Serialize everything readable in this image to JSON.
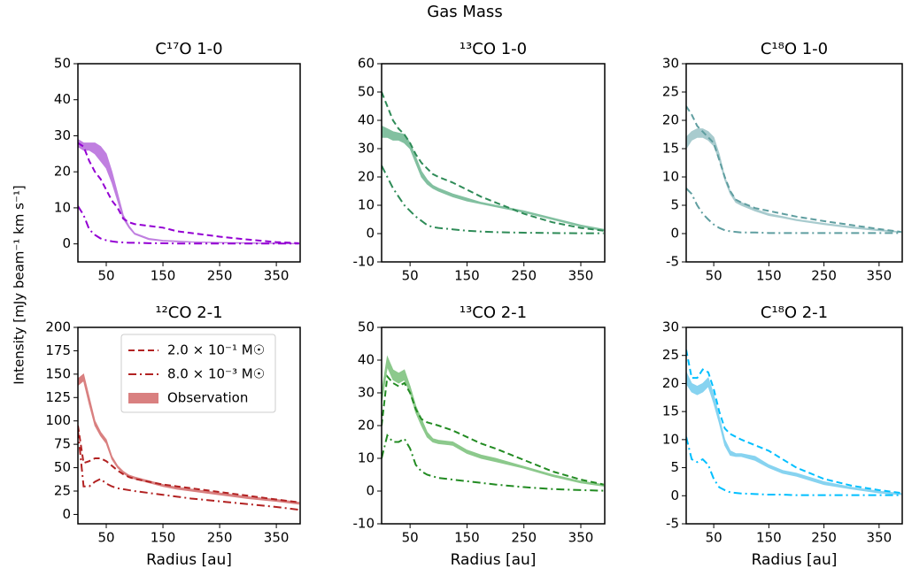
{
  "title": "Gas Mass",
  "y_label": "Intensity [mJy beam⁻¹ km s⁻¹]",
  "chart_data": [
    {
      "type": "line",
      "title": "C¹⁷O 1-0",
      "xlim": [
        0,
        392
      ],
      "ylim": [
        -5,
        50
      ],
      "xticks": [
        50,
        150,
        250,
        350
      ],
      "yticks": [
        0,
        10,
        20,
        30,
        40,
        50
      ],
      "x": [
        0,
        10,
        20,
        30,
        40,
        50,
        60,
        70,
        80,
        90,
        100,
        125,
        150,
        175,
        200,
        250,
        300,
        350,
        390
      ],
      "series": [
        {
          "color": "#9400d3",
          "style": "dashed",
          "values": [
            28,
            27,
            23,
            20,
            18,
            15,
            12,
            10,
            7,
            6,
            5.5,
            5,
            4.5,
            3.5,
            3,
            2,
            1.2,
            0.5,
            0.2
          ]
        },
        {
          "color": "#9400d3",
          "style": "dashdot",
          "values": [
            10.5,
            8,
            4,
            2.5,
            1.5,
            1,
            0.7,
            0.5,
            0.4,
            0.3,
            0.3,
            0.2,
            0.2,
            0.1,
            0.1,
            0.1,
            0.1,
            0.1,
            0.1
          ]
        },
        {
          "color": "#c07fe0",
          "style": "band",
          "lower": [
            27,
            26,
            26,
            25,
            23,
            21,
            17,
            12,
            7,
            4.5,
            2.7,
            1.2,
            0.8,
            0.6,
            0.5,
            0.3,
            0.2,
            0.1,
            0
          ],
          "upper": [
            29,
            28,
            28,
            28,
            27,
            25,
            20,
            14,
            8,
            5,
            3,
            1.5,
            1,
            0.8,
            0.6,
            0.4,
            0.3,
            0.2,
            0.1
          ]
        }
      ]
    },
    {
      "type": "line",
      "title": "¹³CO 1-0",
      "xlim": [
        0,
        392
      ],
      "ylim": [
        -10,
        60
      ],
      "xticks": [
        50,
        150,
        250,
        350
      ],
      "yticks": [
        -10,
        0,
        10,
        20,
        30,
        40,
        50,
        60
      ],
      "x": [
        0,
        10,
        20,
        30,
        40,
        50,
        60,
        70,
        80,
        90,
        100,
        125,
        150,
        175,
        200,
        250,
        300,
        350,
        390
      ],
      "series": [
        {
          "color": "#2e8b57",
          "style": "dashed",
          "values": [
            50,
            45,
            40,
            37,
            35,
            32,
            28,
            25,
            23,
            21,
            20,
            18,
            15.5,
            13,
            11,
            7,
            4,
            2,
            1
          ]
        },
        {
          "color": "#2e8b57",
          "style": "dashdot",
          "values": [
            24,
            20,
            16,
            13,
            10,
            8,
            6,
            4.5,
            3,
            2.3,
            2,
            1.5,
            1,
            0.7,
            0.5,
            0.3,
            0.2,
            0.1,
            0.1
          ]
        },
        {
          "color": "#82c0a0",
          "style": "band",
          "lower": [
            34,
            34,
            33,
            33,
            32,
            30,
            25,
            20,
            17.5,
            16,
            15,
            13,
            11.5,
            10.5,
            9.5,
            7.5,
            5,
            2.5,
            1
          ],
          "upper": [
            38,
            37,
            36,
            35.5,
            35,
            32,
            27,
            22,
            19,
            17,
            16,
            14,
            12.5,
            11,
            10,
            8,
            5.5,
            3,
            1.5
          ]
        }
      ]
    },
    {
      "type": "line",
      "title": "C¹⁸O 1-0",
      "xlim": [
        0,
        392
      ],
      "ylim": [
        -5,
        30
      ],
      "xticks": [
        50,
        150,
        250,
        350
      ],
      "yticks": [
        -5,
        0,
        5,
        10,
        15,
        20,
        25,
        30
      ],
      "x": [
        0,
        10,
        20,
        30,
        40,
        50,
        60,
        70,
        80,
        90,
        100,
        125,
        150,
        175,
        200,
        250,
        300,
        350,
        390
      ],
      "series": [
        {
          "color": "#5f9ea0",
          "style": "dashed",
          "values": [
            22.5,
            21,
            19,
            18,
            17,
            16,
            13,
            10,
            7.5,
            6,
            5.5,
            4.5,
            4,
            3.5,
            3,
            2.2,
            1.5,
            0.8,
            0.3
          ]
        },
        {
          "color": "#5f9ea0",
          "style": "dashdot",
          "values": [
            8,
            7,
            5,
            3.5,
            2.5,
            1.6,
            1,
            0.6,
            0.4,
            0.3,
            0.2,
            0.2,
            0.1,
            0.1,
            0.1,
            0.1,
            0.1,
            0.1,
            0.1
          ]
        },
        {
          "color": "#a8cbce",
          "style": "band",
          "lower": [
            15,
            16.5,
            17,
            17,
            16.5,
            15.5,
            13,
            9.5,
            7,
            5.5,
            5,
            4,
            3.2,
            2.8,
            2.3,
            1.6,
            1,
            0.5,
            0.2
          ],
          "upper": [
            17,
            18,
            18.5,
            18.5,
            18,
            17,
            14,
            10,
            7.5,
            6,
            5.5,
            4.3,
            3.5,
            3,
            2.5,
            1.8,
            1.2,
            0.7,
            0.3
          ]
        }
      ]
    },
    {
      "type": "line",
      "title": "¹²CO 2-1",
      "x_label": "Radius [au]",
      "legend": "upper right",
      "xlim": [
        0,
        392
      ],
      "ylim": [
        -10,
        200
      ],
      "xticks": [
        50,
        150,
        250,
        350
      ],
      "yticks": [
        0,
        25,
        50,
        75,
        100,
        125,
        150,
        175,
        200
      ],
      "x": [
        0,
        10,
        20,
        30,
        40,
        50,
        60,
        70,
        80,
        90,
        100,
        125,
        150,
        175,
        200,
        250,
        300,
        350,
        390
      ],
      "series": [
        {
          "name": "2.0 × 10⁻¹ M☉",
          "color": "#b22222",
          "style": "dashed",
          "values": [
            95,
            55,
            57,
            60,
            60,
            57,
            52,
            47,
            43,
            40,
            38,
            35,
            32,
            30,
            28,
            24,
            20,
            16,
            13
          ]
        },
        {
          "name": "8.0 × 10⁻³ M☉",
          "color": "#b22222",
          "style": "dashdot",
          "values": [
            90,
            30,
            30,
            35,
            38,
            33,
            30,
            28,
            27,
            26,
            25,
            23,
            21,
            19,
            17,
            14,
            11,
            8,
            5
          ]
        },
        {
          "name": "Observation",
          "color": "#d98080",
          "style": "band",
          "lower": [
            138,
            143,
            118,
            95,
            84,
            76,
            59,
            50,
            44,
            40,
            38,
            34,
            30,
            27,
            25,
            21,
            17,
            14,
            11
          ],
          "upper": [
            145,
            150,
            125,
            100,
            88,
            80,
            62,
            52,
            46,
            42,
            40,
            36,
            32,
            29,
            27,
            23,
            19,
            16,
            13
          ]
        }
      ]
    },
    {
      "type": "line",
      "title": "¹³CO 2-1",
      "x_label": "Radius [au]",
      "xlim": [
        0,
        392
      ],
      "ylim": [
        -10,
        50
      ],
      "xticks": [
        50,
        150,
        250,
        350
      ],
      "yticks": [
        -10,
        0,
        10,
        20,
        30,
        40,
        50
      ],
      "x": [
        0,
        10,
        20,
        30,
        40,
        50,
        60,
        70,
        80,
        90,
        100,
        125,
        150,
        175,
        200,
        250,
        300,
        350,
        390
      ],
      "series": [
        {
          "color": "#228b22",
          "style": "dashed",
          "values": [
            20,
            35,
            33,
            32,
            33,
            30,
            25,
            22,
            21,
            20.5,
            20,
            18.5,
            16.5,
            14.5,
            13,
            9.5,
            6,
            3.5,
            2
          ]
        },
        {
          "color": "#228b22",
          "style": "dashdot",
          "values": [
            10,
            17,
            15,
            15,
            16,
            13,
            8,
            6,
            5,
            4.5,
            4,
            3.5,
            3,
            2.5,
            2,
            1.2,
            0.6,
            0.3,
            0.1
          ]
        },
        {
          "color": "#8cc98c",
          "style": "band",
          "lower": [
            27,
            38,
            34,
            33,
            34,
            30,
            24,
            20,
            16.5,
            15,
            14.5,
            14,
            11.5,
            10,
            9,
            7,
            4.5,
            2.5,
            1.5
          ],
          "upper": [
            30,
            41,
            37,
            36,
            37,
            32,
            26,
            22,
            18,
            16,
            15.5,
            15,
            12.5,
            11,
            10,
            7.5,
            5,
            3,
            2
          ]
        }
      ]
    },
    {
      "type": "line",
      "title": "C¹⁸O 2-1",
      "x_label": "Radius [au]",
      "xlim": [
        0,
        392
      ],
      "ylim": [
        -5,
        30
      ],
      "xticks": [
        50,
        150,
        250,
        350
      ],
      "yticks": [
        -5,
        0,
        5,
        10,
        15,
        20,
        25,
        30
      ],
      "x": [
        0,
        10,
        20,
        30,
        40,
        50,
        60,
        70,
        80,
        90,
        100,
        125,
        150,
        175,
        200,
        250,
        300,
        350,
        390
      ],
      "series": [
        {
          "color": "#00bfff",
          "style": "dashed",
          "values": [
            26,
            21,
            21,
            22.5,
            22,
            19,
            15,
            12,
            11,
            10.5,
            10,
            9,
            8,
            6.5,
            5,
            3,
            1.8,
            1,
            0.5
          ]
        },
        {
          "color": "#00bfff",
          "style": "dashdot",
          "values": [
            10.5,
            6.5,
            6,
            6.5,
            5.5,
            3,
            1.5,
            1,
            0.6,
            0.5,
            0.4,
            0.3,
            0.2,
            0.2,
            0.1,
            0.1,
            0.1,
            0.1,
            0.1
          ]
        },
        {
          "color": "#87d3f0",
          "style": "band",
          "lower": [
            20,
            18.5,
            18,
            18.5,
            19.5,
            16.5,
            13,
            9,
            7.2,
            7,
            7,
            6.3,
            5,
            4,
            3.5,
            2,
            1.2,
            0.5,
            0.2
          ],
          "upper": [
            22,
            20,
            19.5,
            20,
            21,
            18,
            14,
            10,
            8,
            7.5,
            7.5,
            7,
            5.5,
            4.5,
            4,
            2.5,
            1.5,
            0.8,
            0.4
          ]
        }
      ]
    }
  ]
}
